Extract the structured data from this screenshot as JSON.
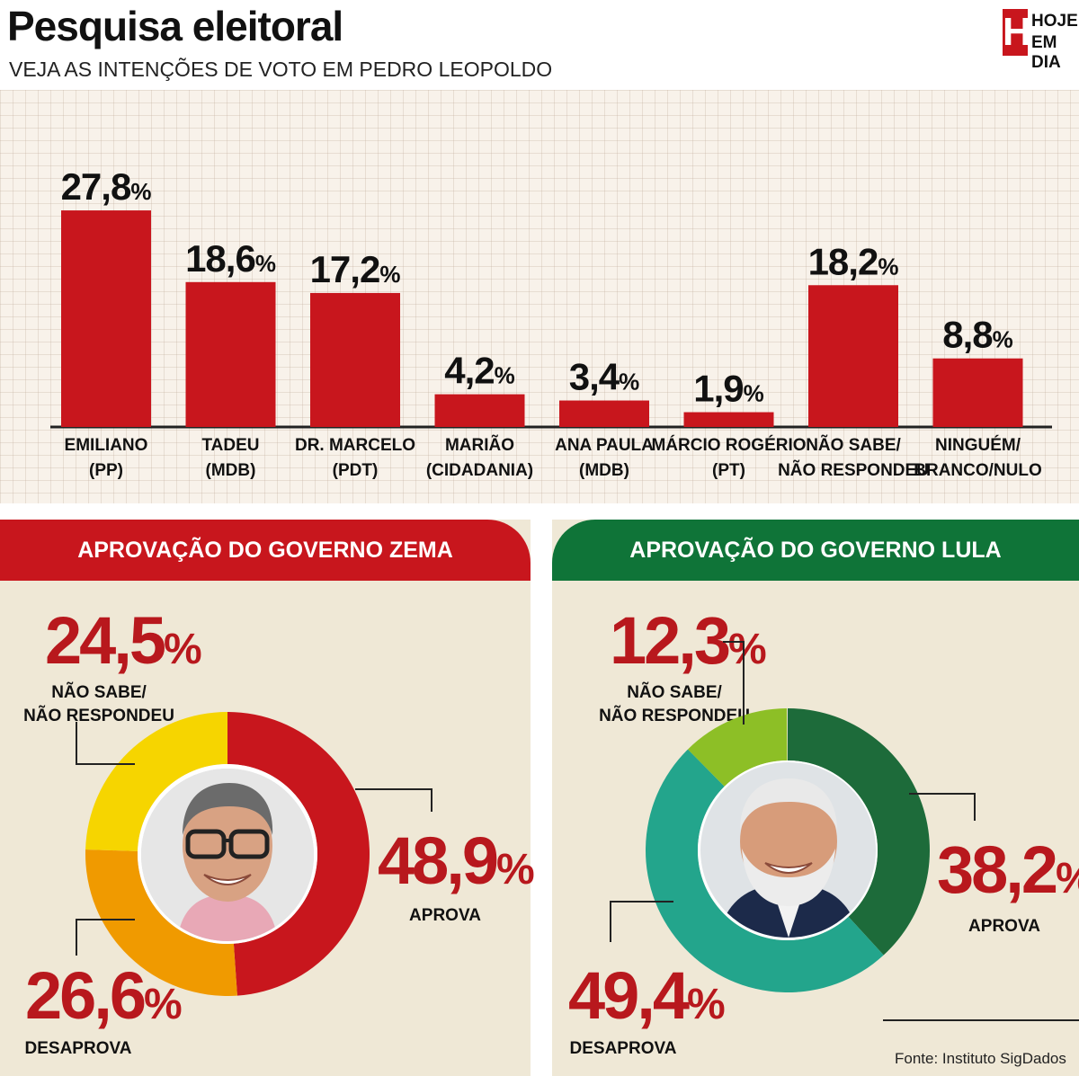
{
  "header": {
    "title": "Pesquisa eleitoral",
    "subtitle": "VEJA AS INTENÇÕES DE VOTO EM PEDRO LEOPOLDO",
    "logo_letter": "H",
    "logo_line1": "HOJE",
    "logo_line2": "EM DIA"
  },
  "chart_data": [
    {
      "type": "bar",
      "title": "",
      "categories": [
        [
          "EMILIANO",
          "(PP)"
        ],
        [
          "TADEU",
          "(MDB)"
        ],
        [
          "DR. MARCELO",
          "(PDT)"
        ],
        [
          "MARIÃO",
          "(CIDADANIA)"
        ],
        [
          "ANA PAULA",
          "(MDB)"
        ],
        [
          "MÁRCIO ROGÉRIO",
          "(PT)"
        ],
        [
          "NÃO SABE/",
          "NÃO RESPONDEU"
        ],
        [
          "NINGUÉM/",
          "BRANCO/NULO"
        ]
      ],
      "values": [
        27.8,
        18.6,
        17.2,
        4.2,
        3.4,
        1.9,
        18.2,
        8.8
      ],
      "value_labels": [
        "27,8",
        "18,6",
        "17,2",
        "4,2",
        "3,4",
        "1,9",
        "18,2",
        "8,8"
      ],
      "unit": "%",
      "color": "#c8161d",
      "ylim": [
        0,
        30
      ],
      "grid": true
    },
    {
      "type": "pie",
      "title": "APROVAÇÃO DO GOVERNO ZEMA",
      "slices": [
        {
          "label": "APROVA",
          "value": 48.9,
          "value_label": "48,9",
          "color": "#c8161d"
        },
        {
          "label": "DESAPROVA",
          "value": 26.6,
          "value_label": "26,6",
          "color": "#f09a00"
        },
        {
          "label": "NÃO SABE/ NÃO RESPONDEU",
          "value": 24.5,
          "value_label": "24,5",
          "color": "#f6d500"
        }
      ]
    },
    {
      "type": "pie",
      "title": "APROVAÇÃO DO GOVERNO LULA",
      "slices": [
        {
          "label": "APROVA",
          "value": 38.2,
          "value_label": "38,2",
          "color": "#1d6b3a"
        },
        {
          "label": "DESAPROVA",
          "value": 49.4,
          "value_label": "49,4",
          "color": "#23a58c"
        },
        {
          "label": "NÃO SABE/ NÃO RESPONDEU",
          "value": 12.3,
          "value_label": "12,3",
          "color": "#8dbf26"
        }
      ]
    }
  ],
  "zema": {
    "header": "APROVAÇÃO DO GOVERNO ZEMA",
    "ns_value": "24,5",
    "ns_label1": "NÃO SABE/",
    "ns_label2": "NÃO RESPONDEU",
    "aprova_value": "48,9",
    "aprova_label": "APROVA",
    "desaprova_value": "26,6",
    "desaprova_label": "DESAPROVA",
    "pct": "%"
  },
  "lula": {
    "header": "APROVAÇÃO DO GOVERNO LULA",
    "ns_value": "12,3",
    "ns_label1": "NÃO SABE/",
    "ns_label2": "NÃO RESPONDEU",
    "aprova_value": "38,2",
    "aprova_label": "APROVA",
    "desaprova_value": "49,4",
    "desaprova_label": "DESAPROVA",
    "pct": "%"
  },
  "footer": {
    "source": "Fonte: Instituto SigDados"
  }
}
